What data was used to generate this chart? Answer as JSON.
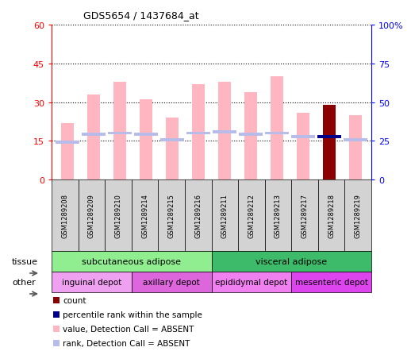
{
  "title": "GDS5654 / 1437684_at",
  "samples": [
    "GSM1289208",
    "GSM1289209",
    "GSM1289210",
    "GSM1289214",
    "GSM1289215",
    "GSM1289216",
    "GSM1289211",
    "GSM1289212",
    "GSM1289213",
    "GSM1289217",
    "GSM1289218",
    "GSM1289219"
  ],
  "value_heights": [
    22,
    33,
    38,
    31,
    24,
    37,
    38,
    34,
    40,
    26,
    29,
    25
  ],
  "rank_heights": [
    14.5,
    17.5,
    18,
    17.5,
    15.5,
    18,
    18.5,
    17.5,
    18,
    16.5,
    16.5,
    15.5
  ],
  "special_bar_idx": 10,
  "ylim_left": [
    0,
    60
  ],
  "ylim_right": [
    0,
    100
  ],
  "yticks_left": [
    0,
    15,
    30,
    45,
    60
  ],
  "yticks_right": [
    0,
    25,
    50,
    75,
    100
  ],
  "ytick_labels_left": [
    "0",
    "15",
    "30",
    "45",
    "60"
  ],
  "ytick_labels_right": [
    "0",
    "25",
    "50",
    "75",
    "100%"
  ],
  "bar_color_absent": "#ffb6c1",
  "rank_color_absent": "#b8bce8",
  "bar_color_count": "#8b0000",
  "rank_color_count": "#00008b",
  "tissue_groups": [
    {
      "label": "subcutaneous adipose",
      "start": 0,
      "end": 6,
      "color": "#90ee90"
    },
    {
      "label": "visceral adipose",
      "start": 6,
      "end": 12,
      "color": "#3dbb6a"
    }
  ],
  "other_groups": [
    {
      "label": "inguinal depot",
      "start": 0,
      "end": 3,
      "color": "#f0a0f0"
    },
    {
      "label": "axillary depot",
      "start": 3,
      "end": 6,
      "color": "#dd66dd"
    },
    {
      "label": "epididymal depot",
      "start": 6,
      "end": 9,
      "color": "#f080f0"
    },
    {
      "label": "mesenteric depot",
      "start": 9,
      "end": 12,
      "color": "#dd44ee"
    }
  ],
  "legend_items": [
    {
      "color": "#8b0000",
      "label": "count"
    },
    {
      "color": "#00008b",
      "label": "percentile rank within the sample"
    },
    {
      "color": "#ffb6c1",
      "label": "value, Detection Call = ABSENT"
    },
    {
      "color": "#b8bce8",
      "label": "rank, Detection Call = ABSENT"
    }
  ],
  "grid_linestyle": "dotted",
  "grid_color": "black",
  "axis_color_left": "red",
  "axis_color_right": "blue",
  "bar_width": 0.5
}
